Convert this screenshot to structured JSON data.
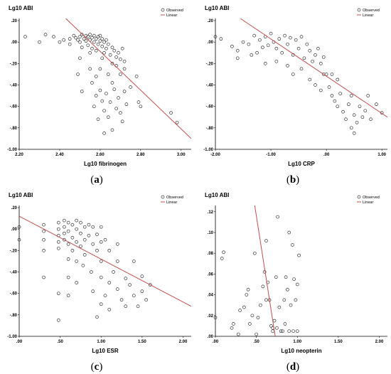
{
  "chart_data": [
    {
      "type": "scatter",
      "panel_letter": "a",
      "ylabel": "Lg10 ABI",
      "xlabel": "Lg10 fibrinogen",
      "xlim": [
        2.2,
        3.05
      ],
      "ylim": [
        -1.0,
        0.22
      ],
      "xticks": [
        2.2,
        2.4,
        2.6,
        2.8,
        3.0
      ],
      "xtick_labels": [
        "2.20",
        "2.40",
        "2.60",
        "2.80",
        "3.00"
      ],
      "yticks": [
        0.2,
        0.0,
        -0.2,
        -0.4,
        -0.6,
        -0.8,
        -1.0
      ],
      "ytick_labels": [
        ".20",
        ".00",
        "-.20",
        "-.40",
        "-.60",
        "-.80",
        "-1.00"
      ],
      "legend": [
        "Observed",
        "Linear"
      ],
      "legend_position": "top-right",
      "line_color": "#c0504d",
      "fit_line": [
        [
          2.43,
          0.22
        ],
        [
          3.05,
          -0.9
        ]
      ],
      "points": [
        [
          2.23,
          0.05
        ],
        [
          2.3,
          0.0
        ],
        [
          2.33,
          0.07
        ],
        [
          2.37,
          0.05
        ],
        [
          2.4,
          0.0
        ],
        [
          2.42,
          0.02
        ],
        [
          2.45,
          -0.02
        ],
        [
          2.45,
          0.03
        ],
        [
          2.47,
          0.06
        ],
        [
          2.48,
          0.04
        ],
        [
          2.49,
          0.02
        ],
        [
          2.5,
          0.05
        ],
        [
          2.5,
          0.0
        ],
        [
          2.51,
          -0.05
        ],
        [
          2.51,
          0.07
        ],
        [
          2.52,
          0.03
        ],
        [
          2.53,
          0.01
        ],
        [
          2.53,
          0.06
        ],
        [
          2.54,
          -0.03
        ],
        [
          2.54,
          0.05
        ],
        [
          2.55,
          0.02
        ],
        [
          2.55,
          0.07
        ],
        [
          2.56,
          -0.06
        ],
        [
          2.56,
          0.04
        ],
        [
          2.57,
          0.0
        ],
        [
          2.57,
          0.06
        ],
        [
          2.58,
          0.03
        ],
        [
          2.58,
          -0.08
        ],
        [
          2.59,
          0.05
        ],
        [
          2.59,
          -0.02
        ],
        [
          2.6,
          0.01
        ],
        [
          2.6,
          0.06
        ],
        [
          2.61,
          -0.04
        ],
        [
          2.61,
          0.03
        ],
        [
          2.62,
          -0.1
        ],
        [
          2.62,
          0.0
        ],
        [
          2.63,
          0.02
        ],
        [
          2.63,
          -0.06
        ],
        [
          2.64,
          -0.02
        ],
        [
          2.65,
          -0.12
        ],
        [
          2.66,
          -0.05
        ],
        [
          2.67,
          -0.08
        ],
        [
          2.68,
          -0.14
        ],
        [
          2.69,
          -0.1
        ],
        [
          2.7,
          -0.16
        ],
        [
          2.71,
          -0.06
        ],
        [
          2.72,
          -0.18
        ],
        [
          2.5,
          -0.15
        ],
        [
          2.49,
          -0.3
        ],
        [
          2.51,
          -0.46
        ],
        [
          2.55,
          -0.25
        ],
        [
          2.56,
          -0.38
        ],
        [
          2.57,
          -0.6
        ],
        [
          2.58,
          -0.5
        ],
        [
          2.59,
          -0.72
        ],
        [
          2.6,
          -0.45
        ],
        [
          2.61,
          -0.55
        ],
        [
          2.62,
          -0.64
        ],
        [
          2.63,
          -0.48
        ],
        [
          2.64,
          -0.7
        ],
        [
          2.65,
          -0.56
        ],
        [
          2.66,
          -0.38
        ],
        [
          2.67,
          -0.44
        ],
        [
          2.68,
          -0.62
        ],
        [
          2.69,
          -0.52
        ],
        [
          2.7,
          -0.66
        ],
        [
          2.71,
          -0.74
        ],
        [
          2.72,
          -0.46
        ],
        [
          2.73,
          -0.58
        ],
        [
          2.75,
          -0.42
        ],
        [
          2.78,
          -0.32
        ],
        [
          2.79,
          -0.56
        ],
        [
          2.8,
          -0.6
        ],
        [
          2.95,
          -0.66
        ],
        [
          2.98,
          -0.75
        ],
        [
          2.62,
          -0.85
        ],
        [
          2.66,
          -0.82
        ],
        [
          2.6,
          -0.25
        ],
        [
          2.64,
          -0.3
        ],
        [
          2.7,
          -0.3
        ],
        [
          2.72,
          -0.25
        ],
        [
          2.68,
          -0.22
        ],
        [
          2.58,
          -0.32
        ],
        [
          2.55,
          -0.1
        ],
        [
          2.61,
          -0.15
        ],
        [
          2.66,
          -0.2
        ]
      ]
    },
    {
      "type": "scatter",
      "panel_letter": "b",
      "ylabel": "Lg10 ABI",
      "xlabel": "Lg10 CRP",
      "xlim": [
        -2.0,
        1.1
      ],
      "ylim": [
        -1.0,
        0.22
      ],
      "xticks": [
        -2.0,
        -1.0,
        0.0,
        1.0
      ],
      "xtick_labels": [
        "-2.00",
        "-1.00",
        ".00",
        "1.00"
      ],
      "yticks": [
        0.2,
        0.0,
        -0.2,
        -0.4,
        -0.6,
        -0.8,
        -1.0
      ],
      "ytick_labels": [
        ".20",
        ".00",
        "-.20",
        "-.40",
        "-.60",
        "-.80",
        "-1.00"
      ],
      "legend": [
        "Observed",
        "Linear"
      ],
      "legend_position": "top-right",
      "line_color": "#c0504d",
      "fit_line": [
        [
          -1.55,
          0.22
        ],
        [
          1.1,
          -0.7
        ]
      ],
      "points": [
        [
          -2.0,
          0.05
        ],
        [
          -1.9,
          0.03
        ],
        [
          -1.7,
          -0.04
        ],
        [
          -1.6,
          -0.08
        ],
        [
          -1.5,
          0.0
        ],
        [
          -1.4,
          -0.02
        ],
        [
          -1.3,
          0.06
        ],
        [
          -1.25,
          -0.1
        ],
        [
          -1.2,
          0.02
        ],
        [
          -1.15,
          -0.05
        ],
        [
          -1.1,
          0.05
        ],
        [
          -1.05,
          -0.03
        ],
        [
          -1.0,
          0.08
        ],
        [
          -0.95,
          0.0
        ],
        [
          -0.9,
          -0.06
        ],
        [
          -0.85,
          0.03
        ],
        [
          -0.8,
          -0.1
        ],
        [
          -0.75,
          0.06
        ],
        [
          -0.7,
          -0.02
        ],
        [
          -0.65,
          0.04
        ],
        [
          -0.6,
          -0.12
        ],
        [
          -0.55,
          0.02
        ],
        [
          -0.5,
          -0.06
        ],
        [
          -0.45,
          0.05
        ],
        [
          -0.4,
          -0.15
        ],
        [
          -0.35,
          -0.02
        ],
        [
          -0.3,
          -0.08
        ],
        [
          -0.25,
          -0.18
        ],
        [
          -0.2,
          -0.12
        ],
        [
          -0.15,
          -0.06
        ],
        [
          -0.1,
          -0.2
        ],
        [
          -0.05,
          -0.14
        ],
        [
          0.0,
          -0.3
        ],
        [
          -1.6,
          -0.15
        ],
        [
          -1.35,
          -0.12
        ],
        [
          -1.1,
          -0.2
        ],
        [
          -0.9,
          -0.18
        ],
        [
          -0.7,
          -0.22
        ],
        [
          -0.6,
          -0.3
        ],
        [
          -0.45,
          -0.25
        ],
        [
          -0.3,
          -0.35
        ],
        [
          -0.2,
          -0.4
        ],
        [
          -0.1,
          -0.45
        ],
        [
          0.05,
          -0.42
        ],
        [
          0.1,
          -0.5
        ],
        [
          0.15,
          -0.55
        ],
        [
          0.2,
          -0.6
        ],
        [
          0.25,
          -0.48
        ],
        [
          0.3,
          -0.65
        ],
        [
          0.35,
          -0.72
        ],
        [
          0.4,
          -0.58
        ],
        [
          0.45,
          -0.8
        ],
        [
          0.5,
          -0.68
        ],
        [
          0.55,
          -0.75
        ],
        [
          0.6,
          -0.6
        ],
        [
          0.65,
          -0.7
        ],
        [
          0.7,
          -0.64
        ],
        [
          0.8,
          -0.72
        ],
        [
          0.9,
          -0.58
        ],
        [
          1.0,
          -0.66
        ],
        [
          0.5,
          -0.85
        ],
        [
          0.45,
          -0.5
        ],
        [
          0.75,
          -0.5
        ],
        [
          0.2,
          -0.35
        ],
        [
          -0.05,
          -0.3
        ],
        [
          0.1,
          -0.3
        ]
      ]
    },
    {
      "type": "scatter",
      "panel_letter": "c",
      "ylabel": "Lg10 ABI",
      "xlabel": "Lg10 ESR",
      "xlim": [
        0.0,
        2.1
      ],
      "ylim": [
        -1.0,
        0.22
      ],
      "xticks": [
        0.0,
        0.5,
        1.0,
        1.5,
        2.0
      ],
      "xtick_labels": [
        ".00",
        ".50",
        "1.00",
        "1.50",
        "2.00"
      ],
      "yticks": [
        0.2,
        0.0,
        -0.2,
        -0.4,
        -0.6,
        -0.8,
        -1.0
      ],
      "ytick_labels": [
        ".20",
        ".00",
        "-.20",
        "-.40",
        "-.60",
        "-.80",
        "-1.00"
      ],
      "legend": [
        "Observed",
        "Linear"
      ],
      "legend_position": "top-right",
      "line_color": "#c0504d",
      "fit_line": [
        [
          0.0,
          0.12
        ],
        [
          2.1,
          -0.72
        ]
      ],
      "points": [
        [
          0.0,
          0.02
        ],
        [
          0.0,
          -0.1
        ],
        [
          0.3,
          0.04
        ],
        [
          0.3,
          -0.02
        ],
        [
          0.3,
          -0.1
        ],
        [
          0.3,
          -0.2
        ],
        [
          0.3,
          -0.45
        ],
        [
          0.48,
          0.06
        ],
        [
          0.48,
          0.0
        ],
        [
          0.48,
          -0.06
        ],
        [
          0.48,
          -0.12
        ],
        [
          0.48,
          -0.18
        ],
        [
          0.48,
          -0.6
        ],
        [
          0.48,
          -0.85
        ],
        [
          0.55,
          0.08
        ],
        [
          0.55,
          0.02
        ],
        [
          0.55,
          -0.04
        ],
        [
          0.55,
          -0.1
        ],
        [
          0.6,
          0.06
        ],
        [
          0.6,
          -0.02
        ],
        [
          0.6,
          -0.14
        ],
        [
          0.6,
          -0.28
        ],
        [
          0.6,
          -0.45
        ],
        [
          0.6,
          -0.62
        ],
        [
          0.65,
          0.04
        ],
        [
          0.65,
          -0.08
        ],
        [
          0.65,
          -0.2
        ],
        [
          0.7,
          0.08
        ],
        [
          0.7,
          0.0
        ],
        [
          0.7,
          -0.12
        ],
        [
          0.7,
          -0.3
        ],
        [
          0.7,
          -0.5
        ],
        [
          0.75,
          0.06
        ],
        [
          0.75,
          -0.04
        ],
        [
          0.75,
          -0.16
        ],
        [
          0.78,
          -0.34
        ],
        [
          0.8,
          0.02
        ],
        [
          0.8,
          -0.1
        ],
        [
          0.8,
          -0.24
        ],
        [
          0.85,
          0.04
        ],
        [
          0.85,
          -0.06
        ],
        [
          0.88,
          -0.4
        ],
        [
          0.9,
          0.02
        ],
        [
          0.9,
          -0.14
        ],
        [
          0.9,
          -0.58
        ],
        [
          0.95,
          -0.2
        ],
        [
          0.95,
          -0.05
        ],
        [
          0.95,
          -0.82
        ],
        [
          1.0,
          0.02
        ],
        [
          1.0,
          -0.12
        ],
        [
          1.0,
          -0.3
        ],
        [
          1.0,
          -0.45
        ],
        [
          1.05,
          -0.1
        ],
        [
          1.05,
          -0.62
        ],
        [
          1.1,
          -0.2
        ],
        [
          1.1,
          -0.5
        ],
        [
          1.1,
          -0.75
        ],
        [
          1.15,
          -0.4
        ],
        [
          1.2,
          -0.14
        ],
        [
          1.2,
          -0.56
        ],
        [
          1.25,
          -0.66
        ],
        [
          1.3,
          -0.46
        ],
        [
          1.3,
          -0.72
        ],
        [
          1.35,
          -0.52
        ],
        [
          1.4,
          -0.62
        ],
        [
          1.4,
          -0.3
        ],
        [
          1.45,
          -0.72
        ],
        [
          1.5,
          -0.58
        ],
        [
          1.5,
          -0.44
        ],
        [
          1.55,
          -0.66
        ],
        [
          1.6,
          -0.52
        ],
        [
          1.2,
          -0.3
        ],
        [
          1.0,
          -0.7
        ]
      ]
    },
    {
      "type": "scatter",
      "panel_letter": "d",
      "ylabel": "Lg10 ABI",
      "xlabel": "Lg10 neopterin",
      "xlim": [
        0.0,
        2.1
      ],
      "ylim": [
        0.0,
        0.126
      ],
      "xticks": [
        0.0,
        0.5,
        1.0,
        1.5,
        2.0
      ],
      "xtick_labels": [
        ".00",
        ".50",
        "1.00",
        "1.50",
        "2.00"
      ],
      "yticks": [
        0.12,
        0.1,
        0.08,
        0.06,
        0.04,
        0.02,
        0.0
      ],
      "ytick_labels": [
        ".12",
        ".10",
        ".08",
        ".06",
        ".04",
        ".02",
        ".00"
      ],
      "legend": [
        "Observed",
        "Linear"
      ],
      "legend_position": "top-right",
      "line_color": "#c0504d",
      "fit_line": [
        [
          0.48,
          0.126
        ],
        [
          0.73,
          0.0
        ]
      ],
      "points": [
        [
          0.0,
          0.018
        ],
        [
          0.08,
          0.075
        ],
        [
          0.1,
          0.081
        ],
        [
          0.2,
          0.008
        ],
        [
          0.22,
          0.012
        ],
        [
          0.28,
          0.002
        ],
        [
          0.3,
          0.025
        ],
        [
          0.35,
          0.028
        ],
        [
          0.38,
          0.04
        ],
        [
          0.4,
          0.045
        ],
        [
          0.42,
          0.012
        ],
        [
          0.45,
          0.02
        ],
        [
          0.48,
          0.08
        ],
        [
          0.5,
          0.002
        ],
        [
          0.52,
          0.018
        ],
        [
          0.55,
          0.03
        ],
        [
          0.58,
          0.048
        ],
        [
          0.6,
          0.062
        ],
        [
          0.62,
          0.092
        ],
        [
          0.64,
          0.052
        ],
        [
          0.66,
          0.035
        ],
        [
          0.68,
          0.01
        ],
        [
          0.7,
          0.008
        ],
        [
          0.72,
          0.015
        ],
        [
          0.74,
          0.057
        ],
        [
          0.76,
          0.115
        ],
        [
          0.78,
          0.028
        ],
        [
          0.8,
          0.005
        ],
        [
          0.82,
          0.005
        ],
        [
          0.84,
          0.035
        ],
        [
          0.86,
          0.057
        ],
        [
          0.88,
          0.045
        ],
        [
          0.9,
          0.1
        ],
        [
          0.92,
          0.03
        ],
        [
          0.94,
          0.088
        ],
        [
          0.96,
          0.055
        ],
        [
          0.98,
          0.035
        ],
        [
          1.0,
          0.05
        ],
        [
          1.02,
          0.078
        ],
        [
          0.9,
          0.005
        ],
        [
          0.95,
          0.005
        ],
        [
          1.0,
          0.005
        ],
        [
          0.62,
          0.035
        ],
        [
          0.7,
          0.005
        ],
        [
          0.75,
          0.008
        ],
        [
          0.85,
          0.012
        ]
      ]
    }
  ]
}
